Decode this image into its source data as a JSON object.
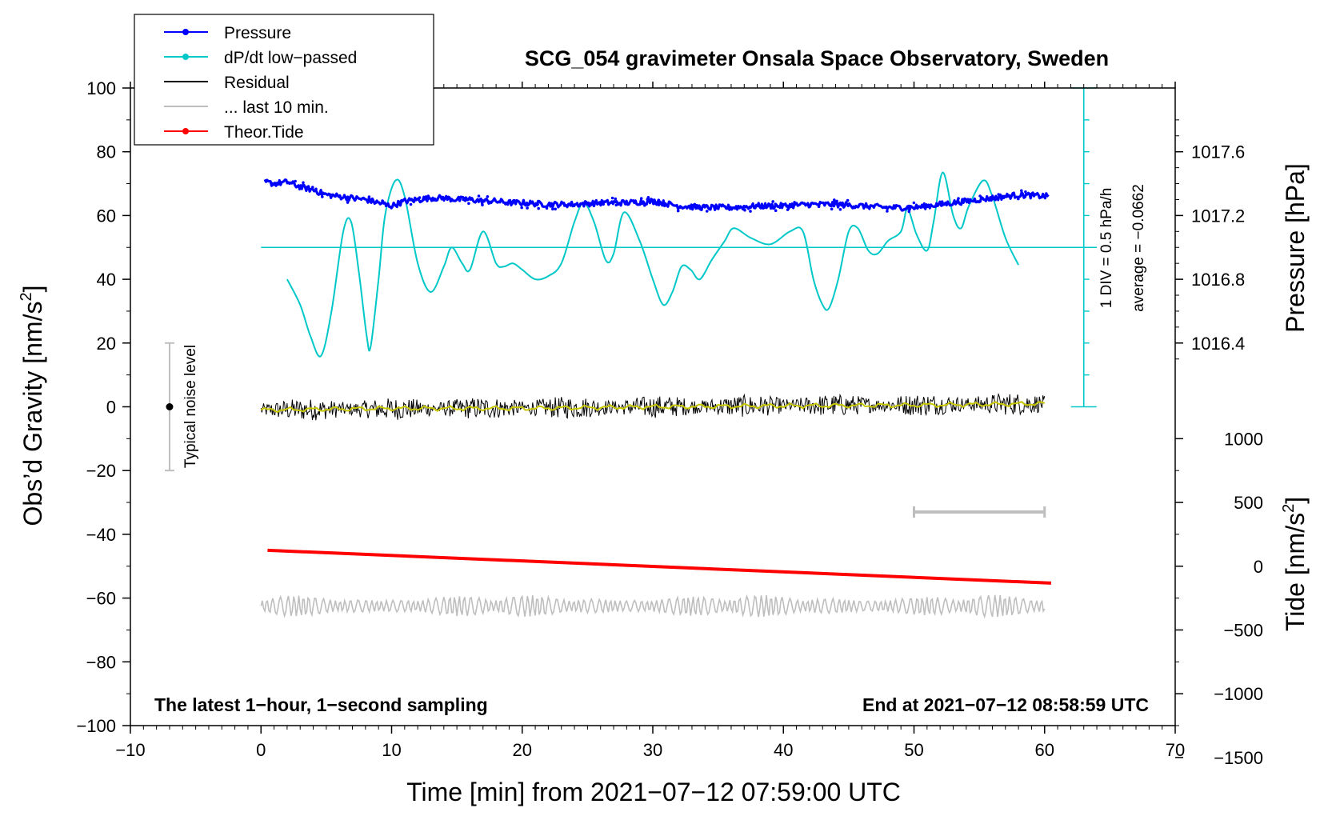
{
  "chart_data": {
    "type": "line",
    "title": "SCG_054 gravimeter Onsala Space Observatory, Sweden",
    "xlabel": "Time [min] from 2021−07−12 07:59:00 UTC",
    "ylabel_left_main": "Obs’d Gravity [nm/s",
    "ylabel_left_sup": "2",
    "ylabel_left_end": "]",
    "ylabel_right_pressure": "Pressure [hPa]",
    "ylabel_right_tide_main": "Tide [nm/s",
    "ylabel_right_tide_sup": "2",
    "ylabel_right_tide_end": "]",
    "xlim": [
      -10,
      70
    ],
    "ylim": [
      -100,
      100
    ],
    "x_ticks": [
      -10,
      0,
      10,
      20,
      30,
      40,
      50,
      60,
      70
    ],
    "x_tick_labels": [
      "−10",
      "0",
      "10",
      "20",
      "30",
      "40",
      "50",
      "60",
      "70"
    ],
    "y_ticks": [
      100,
      80,
      60,
      40,
      20,
      0,
      -20,
      -40,
      -60,
      -80,
      -100
    ],
    "y_tick_labels": [
      "100",
      "80",
      "60",
      "40",
      "20",
      "0",
      "−20",
      "−40",
      "−60",
      "−80",
      "−100"
    ],
    "pressure_axis": {
      "ticks": [
        1017.6,
        1017.2,
        1016.8,
        1016.4
      ],
      "tick_labels": [
        "1017.6",
        "1017.2",
        "1016.8",
        "1016.4"
      ],
      "gravity_at_1017_2": 60,
      "hpa_per_gravity_unit": 0.02
    },
    "tide_axis": {
      "ticks": [
        1000,
        500,
        0,
        -500,
        -1000,
        -1500
      ],
      "tick_labels": [
        "1000",
        "500",
        "0",
        "−500",
        "−1000",
        "−1500"
      ],
      "gravity_at_0": -50,
      "tide_per_gravity_unit": 25
    },
    "legend": [
      {
        "label": "Pressure",
        "color": "#0000ff",
        "marker": true
      },
      {
        "label": "dP/dt low−passed",
        "color": "#00c8c8",
        "marker": true
      },
      {
        "label": "Residual",
        "color": "#000000",
        "marker": false
      },
      {
        "label": "... last 10 min.",
        "color": "#bebebe",
        "marker": false
      },
      {
        "label": "Theor.Tide",
        "color": "#ff0000",
        "marker": true
      }
    ],
    "series": [
      {
        "name": "Pressure",
        "color": "#0000ff",
        "x": [
          0.3,
          1,
          2,
          3,
          4,
          5,
          6,
          7,
          8,
          9,
          10,
          11,
          12,
          13,
          14,
          15,
          16,
          17,
          18,
          19,
          20,
          22,
          24,
          26,
          28,
          30,
          32,
          34,
          36,
          38,
          40,
          42,
          44,
          46,
          48,
          50,
          52,
          54,
          56,
          58,
          60.3
        ],
        "y": [
          70.5,
          70,
          70.5,
          69,
          68,
          66.5,
          66,
          65.5,
          65,
          64,
          63,
          64.5,
          65,
          65.5,
          65.5,
          65,
          65,
          64.5,
          64.5,
          64,
          64,
          63.5,
          63.5,
          64,
          64,
          64.5,
          63,
          62.5,
          62.5,
          63,
          63,
          63.5,
          63.5,
          63,
          62.5,
          62.5,
          63.5,
          64.5,
          65.5,
          66.5,
          66
        ]
      },
      {
        "name": "dP/dt low−passed",
        "color": "#00c8c8",
        "x": [
          2,
          3,
          3.8,
          4.6,
          5.4,
          6.3,
          6.9,
          7.5,
          8.1,
          8.4,
          9,
          9.5,
          10.3,
          11,
          12,
          13,
          14,
          14.6,
          15.4,
          16,
          17,
          18,
          18.6,
          19.3,
          20,
          21,
          22,
          23,
          24,
          24.7,
          25.5,
          26.4,
          27,
          27.8,
          29,
          30,
          30.8,
          31.5,
          32.2,
          32.9,
          33.6,
          34.5,
          35.5,
          36.2,
          37.5,
          39,
          40.5,
          41.5,
          42.3,
          43,
          43.5,
          44.2,
          45,
          45.7,
          46.5,
          47.2,
          48,
          49,
          49.5,
          50.2,
          51,
          51.5,
          52.2,
          53,
          53.6,
          54.2,
          55.3,
          56,
          57,
          58
        ],
        "y": [
          40,
          32,
          22,
          16,
          30,
          55,
          58,
          42,
          22,
          19,
          40,
          60,
          71,
          66,
          45,
          36,
          44,
          50,
          45,
          43,
          55,
          45,
          44,
          45,
          43,
          40,
          41,
          45,
          58,
          64,
          58,
          46,
          48,
          61,
          52,
          40,
          32,
          36,
          44,
          43,
          40,
          46,
          52,
          56,
          53,
          51,
          55,
          55,
          40,
          32,
          31,
          40,
          55,
          56,
          49,
          48,
          52,
          55,
          62,
          54,
          49,
          58,
          73.5,
          60,
          56,
          63,
          71,
          66,
          53,
          44.5
        ]
      },
      {
        "name": "Residual",
        "color": "#000000",
        "x": [
          0,
          60
        ],
        "y": [
          -1,
          1
        ],
        "noise_amplitude": 3.5
      },
      {
        "name": "Residual smoothed",
        "color": "#c8c800",
        "x": [
          0,
          10,
          20,
          30,
          40,
          50,
          60
        ],
        "y": [
          -1,
          -0.5,
          -0.5,
          0,
          0.3,
          0.5,
          1
        ]
      },
      {
        "name": "... last 10 min.",
        "color": "#bebebe",
        "x": [
          0,
          60
        ],
        "y": [
          -62.5,
          -62.5
        ],
        "oscillation_amplitude": 3.5,
        "note": "last 10 min of residual shown below, offset"
      },
      {
        "name": "Theor.Tide",
        "color": "#ff0000",
        "x": [
          0.5,
          60.5
        ],
        "y": [
          -45,
          -55.3
        ]
      }
    ],
    "horizontal_reference": {
      "y": 50,
      "x_range": [
        0,
        64
      ],
      "color": "#00c8c8"
    },
    "pressure_rate_scale": {
      "x": 63,
      "y_range": [
        0,
        100
      ],
      "label": "1 DIV = 0.5 hPa/h",
      "average_label": "average = −0.0662",
      "color": "#00c8c8"
    },
    "noise_bar": {
      "x": -7,
      "y_range": [
        -20,
        20
      ],
      "label": "Typical noise level"
    },
    "last10_bar": {
      "x_range": [
        50,
        60
      ],
      "y": -33
    },
    "annotations": {
      "bottom_left": "The latest 1−hour, 1−second sampling",
      "bottom_right": "End at 2021−07−12 08:58:59 UTC"
    }
  }
}
